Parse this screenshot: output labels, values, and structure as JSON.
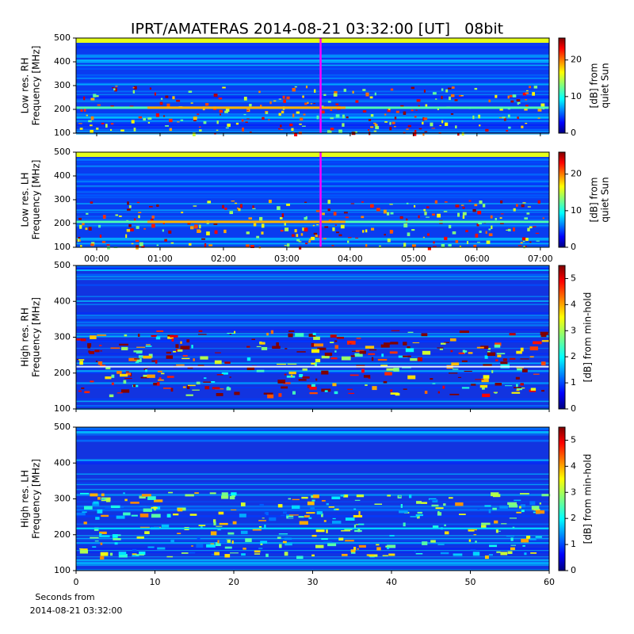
{
  "chart_data": [
    {
      "type": "spectrogram",
      "title": "IPRT/AMATERAS 2014-08-21 03:32:00 [UT]   08bit",
      "ylabel": [
        "Low res. RH",
        "Frequency [MHz]"
      ],
      "ylim": [
        100,
        500
      ],
      "yticks": [
        100,
        200,
        300,
        400,
        500
      ],
      "xlim": [
        -0.325,
        7.14
      ],
      "marker_x": 3.533,
      "marker_color": "#ff00ff",
      "colorbar_label": [
        "[dB] from",
        "quiet Sun"
      ],
      "clim": [
        0,
        26
      ],
      "cticks": [
        0,
        10,
        20
      ],
      "colormap": "jet"
    },
    {
      "type": "spectrogram",
      "ylabel": [
        "Low res. LH",
        "Frequency [MHz]"
      ],
      "ylim": [
        100,
        500
      ],
      "yticks": [
        100,
        200,
        300,
        400,
        500
      ],
      "xlim": [
        -0.325,
        7.14
      ],
      "marker_x": 3.533,
      "marker_color": "#ff00ff",
      "xticks": [
        {
          "value": 0,
          "label": "00:00"
        },
        {
          "value": 1,
          "label": "01:00"
        },
        {
          "value": 2,
          "label": "02:00"
        },
        {
          "value": 3,
          "label": "03:00"
        },
        {
          "value": 4,
          "label": "04:00"
        },
        {
          "value": 5,
          "label": "05:00"
        },
        {
          "value": 6,
          "label": "06:00"
        },
        {
          "value": 7,
          "label": "07:00"
        }
      ],
      "colorbar_label": [
        "[dB] from",
        "quiet Sun"
      ],
      "clim": [
        0,
        26
      ],
      "cticks": [
        0,
        10,
        20
      ],
      "colormap": "jet"
    },
    {
      "type": "spectrogram",
      "ylabel": [
        "High res. RH",
        "Frequency [MHz]"
      ],
      "ylim": [
        100,
        500
      ],
      "yticks": [
        100,
        200,
        300,
        400,
        500
      ],
      "xlim": [
        0,
        60
      ],
      "colorbar_label": [
        "[dB] from min-hold"
      ],
      "clim": [
        0,
        5.5
      ],
      "cticks": [
        0,
        1,
        2,
        3,
        4,
        5
      ],
      "colormap": "jet"
    },
    {
      "type": "spectrogram",
      "ylabel": [
        "High res. LH",
        "Frequency [MHz]"
      ],
      "ylim": [
        100,
        500
      ],
      "yticks": [
        100,
        200,
        300,
        400,
        500
      ],
      "xlim": [
        0,
        60
      ],
      "xticks": [
        0,
        10,
        20,
        30,
        40,
        50,
        60
      ],
      "xlabel": [
        "Seconds from",
        "2014-08-21 03:32:00"
      ],
      "colorbar_label": [
        "[dB] from min-hold"
      ],
      "clim": [
        0,
        5.5
      ],
      "cticks": [
        0,
        1,
        2,
        3,
        4,
        5
      ],
      "colormap": "jet"
    }
  ]
}
